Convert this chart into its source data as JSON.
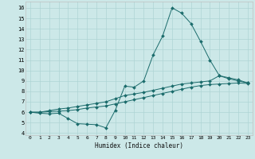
{
  "xlabel": "Humidex (Indice chaleur)",
  "bg_color": "#cce8e8",
  "grid_color": "#aed4d4",
  "line_color": "#1a6b6b",
  "xlim": [
    -0.5,
    23.5
  ],
  "ylim": [
    3.8,
    16.6
  ],
  "xticks": [
    0,
    1,
    2,
    3,
    4,
    5,
    6,
    7,
    8,
    9,
    10,
    11,
    12,
    13,
    14,
    15,
    16,
    17,
    18,
    19,
    20,
    21,
    22,
    23
  ],
  "yticks": [
    4,
    5,
    6,
    7,
    8,
    9,
    10,
    11,
    12,
    13,
    14,
    15,
    16
  ],
  "line1_x": [
    0,
    1,
    2,
    3,
    4,
    5,
    6,
    7,
    8,
    9,
    10,
    11,
    12,
    13,
    14,
    15,
    16,
    17,
    18,
    19,
    20,
    21,
    22,
    23
  ],
  "line1_y": [
    6.0,
    5.9,
    5.85,
    5.9,
    5.4,
    4.9,
    4.85,
    4.8,
    4.5,
    6.2,
    8.5,
    8.4,
    9.0,
    11.5,
    13.3,
    16.0,
    15.5,
    14.5,
    12.8,
    11.0,
    9.5,
    9.2,
    9.0,
    8.8
  ],
  "line2_x": [
    0,
    1,
    2,
    3,
    4,
    5,
    6,
    7,
    8,
    9,
    10,
    11,
    12,
    13,
    14,
    15,
    16,
    17,
    18,
    19,
    20,
    21,
    22,
    23
  ],
  "line2_y": [
    6.0,
    6.0,
    6.15,
    6.3,
    6.4,
    6.55,
    6.7,
    6.85,
    7.0,
    7.3,
    7.6,
    7.75,
    7.9,
    8.1,
    8.3,
    8.5,
    8.7,
    8.8,
    8.9,
    9.0,
    9.5,
    9.3,
    9.1,
    8.8
  ],
  "line3_x": [
    0,
    1,
    2,
    3,
    4,
    5,
    6,
    7,
    8,
    9,
    10,
    11,
    12,
    13,
    14,
    15,
    16,
    17,
    18,
    19,
    20,
    21,
    22,
    23
  ],
  "line3_y": [
    6.0,
    6.0,
    6.05,
    6.1,
    6.15,
    6.25,
    6.4,
    6.5,
    6.6,
    6.8,
    7.0,
    7.2,
    7.4,
    7.6,
    7.8,
    8.0,
    8.2,
    8.4,
    8.55,
    8.65,
    8.7,
    8.75,
    8.8,
    8.75
  ]
}
